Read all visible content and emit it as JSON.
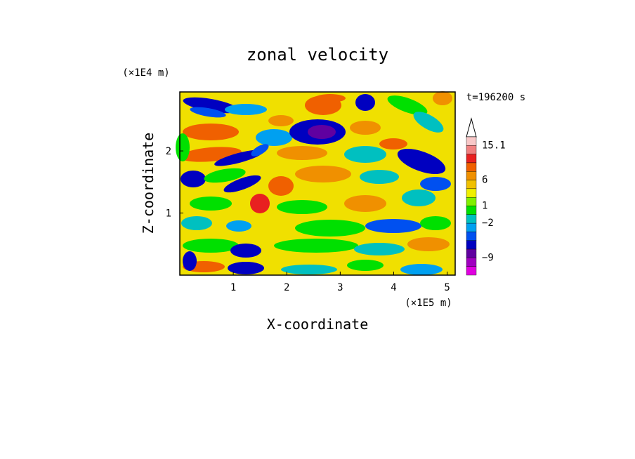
{
  "chart_data": {
    "type": "heatmap",
    "title": "zonal velocity",
    "xlabel": "X-coordinate",
    "ylabel": "Z-coordinate",
    "x_scale_label": "(×1E5 m)",
    "y_scale_label": "(×1E4 m)",
    "time_label": "t=196200 s",
    "xlim": [
      0,
      5.15
    ],
    "ylim": [
      0,
      2.95
    ],
    "x_ticks": [
      "1",
      "2",
      "3",
      "4",
      "5"
    ],
    "y_ticks": [
      "1",
      "2"
    ],
    "x_tick_values": [
      1,
      2,
      3,
      4,
      5
    ],
    "y_tick_values": [
      1,
      2
    ],
    "colorbar": {
      "labels": [
        "15.1",
        "6",
        "1",
        "−2",
        "−9"
      ],
      "colors_top_to_bottom": [
        "#f8c8c8",
        "#f08080",
        "#e82020",
        "#f06000",
        "#f09000",
        "#f0c000",
        "#f0f000",
        "#80f000",
        "#00e000",
        "#00c0c0",
        "#00a0f0",
        "#0050f0",
        "#0000c0",
        "#6000a0",
        "#a000c0",
        "#e000e0"
      ],
      "extend_top": true
    }
  }
}
